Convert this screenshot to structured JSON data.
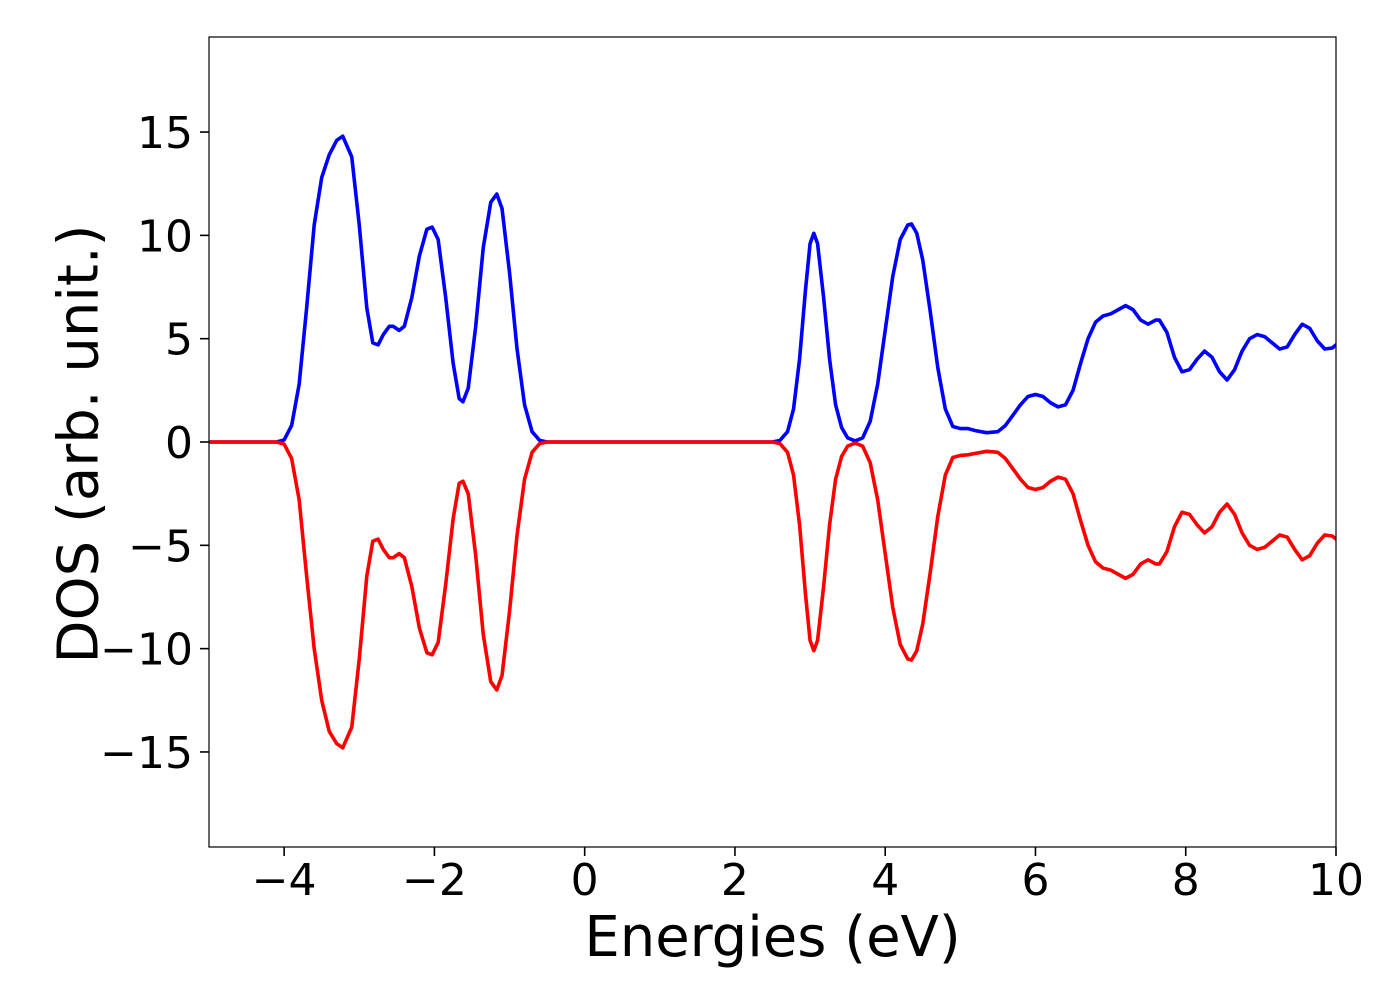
{
  "chart_data": {
    "type": "line",
    "title": "",
    "xlabel": "Energies (eV)",
    "ylabel": "DOS (arb. unit.)",
    "xlim": [
      -5,
      10
    ],
    "ylim": [
      -19.6,
      19.6
    ],
    "x_ticks": [
      -4,
      -2,
      0,
      2,
      4,
      6,
      8,
      10
    ],
    "x_tick_labels": [
      "−4",
      "−2",
      "0",
      "2",
      "4",
      "6",
      "8",
      "10"
    ],
    "y_ticks": [
      -15,
      -10,
      -5,
      0,
      5,
      10,
      15
    ],
    "y_tick_labels": [
      "−15",
      "−10",
      "−5",
      "0",
      "5",
      "10",
      "15"
    ],
    "grid": false,
    "legend": "none",
    "series": [
      {
        "color": "#0000ff",
        "points": [
          [
            -5.0,
            0.0
          ],
          [
            -4.1,
            0.0
          ],
          [
            -4.0,
            0.1
          ],
          [
            -3.9,
            0.8
          ],
          [
            -3.8,
            2.8
          ],
          [
            -3.7,
            6.5
          ],
          [
            -3.6,
            10.5
          ],
          [
            -3.5,
            12.8
          ],
          [
            -3.4,
            13.9
          ],
          [
            -3.3,
            14.6
          ],
          [
            -3.22,
            14.8
          ],
          [
            -3.1,
            13.8
          ],
          [
            -3.0,
            10.5
          ],
          [
            -2.9,
            6.5
          ],
          [
            -2.82,
            4.8
          ],
          [
            -2.75,
            4.7
          ],
          [
            -2.68,
            5.2
          ],
          [
            -2.6,
            5.6
          ],
          [
            -2.55,
            5.6
          ],
          [
            -2.47,
            5.4
          ],
          [
            -2.4,
            5.6
          ],
          [
            -2.3,
            7.0
          ],
          [
            -2.2,
            9.0
          ],
          [
            -2.1,
            10.3
          ],
          [
            -2.03,
            10.4
          ],
          [
            -1.95,
            9.8
          ],
          [
            -1.85,
            7.0
          ],
          [
            -1.75,
            3.8
          ],
          [
            -1.67,
            2.1
          ],
          [
            -1.62,
            1.95
          ],
          [
            -1.55,
            2.6
          ],
          [
            -1.45,
            5.6
          ],
          [
            -1.35,
            9.4
          ],
          [
            -1.25,
            11.6
          ],
          [
            -1.17,
            12.0
          ],
          [
            -1.1,
            11.3
          ],
          [
            -1.0,
            8.2
          ],
          [
            -0.9,
            4.5
          ],
          [
            -0.8,
            1.8
          ],
          [
            -0.7,
            0.5
          ],
          [
            -0.6,
            0.08
          ],
          [
            -0.5,
            0.0
          ],
          [
            2.5,
            0.0
          ],
          [
            2.6,
            0.08
          ],
          [
            2.7,
            0.5
          ],
          [
            2.78,
            1.6
          ],
          [
            2.86,
            4.0
          ],
          [
            2.94,
            7.4
          ],
          [
            3.0,
            9.6
          ],
          [
            3.05,
            10.1
          ],
          [
            3.1,
            9.6
          ],
          [
            3.18,
            7.0
          ],
          [
            3.26,
            4.0
          ],
          [
            3.34,
            1.8
          ],
          [
            3.42,
            0.7
          ],
          [
            3.5,
            0.2
          ],
          [
            3.6,
            0.05
          ],
          [
            3.7,
            0.2
          ],
          [
            3.8,
            1.0
          ],
          [
            3.9,
            2.8
          ],
          [
            4.0,
            5.4
          ],
          [
            4.1,
            8.0
          ],
          [
            4.2,
            9.8
          ],
          [
            4.3,
            10.5
          ],
          [
            4.35,
            10.55
          ],
          [
            4.42,
            10.1
          ],
          [
            4.5,
            8.8
          ],
          [
            4.6,
            6.3
          ],
          [
            4.7,
            3.6
          ],
          [
            4.8,
            1.6
          ],
          [
            4.9,
            0.75
          ],
          [
            5.0,
            0.65
          ],
          [
            5.1,
            0.65
          ],
          [
            5.2,
            0.55
          ],
          [
            5.35,
            0.45
          ],
          [
            5.5,
            0.5
          ],
          [
            5.6,
            0.8
          ],
          [
            5.7,
            1.3
          ],
          [
            5.8,
            1.8
          ],
          [
            5.9,
            2.2
          ],
          [
            6.0,
            2.3
          ],
          [
            6.1,
            2.2
          ],
          [
            6.2,
            1.9
          ],
          [
            6.3,
            1.7
          ],
          [
            6.4,
            1.8
          ],
          [
            6.5,
            2.5
          ],
          [
            6.6,
            3.8
          ],
          [
            6.7,
            5.0
          ],
          [
            6.8,
            5.8
          ],
          [
            6.9,
            6.1
          ],
          [
            7.0,
            6.2
          ],
          [
            7.1,
            6.4
          ],
          [
            7.2,
            6.6
          ],
          [
            7.3,
            6.4
          ],
          [
            7.4,
            5.9
          ],
          [
            7.5,
            5.7
          ],
          [
            7.6,
            5.9
          ],
          [
            7.65,
            5.9
          ],
          [
            7.75,
            5.3
          ],
          [
            7.85,
            4.1
          ],
          [
            7.95,
            3.4
          ],
          [
            8.05,
            3.5
          ],
          [
            8.15,
            4.0
          ],
          [
            8.25,
            4.4
          ],
          [
            8.35,
            4.1
          ],
          [
            8.45,
            3.4
          ],
          [
            8.55,
            3.0
          ],
          [
            8.65,
            3.5
          ],
          [
            8.75,
            4.4
          ],
          [
            8.85,
            5.0
          ],
          [
            8.95,
            5.2
          ],
          [
            9.05,
            5.1
          ],
          [
            9.15,
            4.8
          ],
          [
            9.25,
            4.5
          ],
          [
            9.35,
            4.6
          ],
          [
            9.45,
            5.2
          ],
          [
            9.55,
            5.7
          ],
          [
            9.65,
            5.5
          ],
          [
            9.75,
            4.9
          ],
          [
            9.85,
            4.5
          ],
          [
            9.95,
            4.55
          ],
          [
            10.0,
            4.7
          ]
        ]
      },
      {
        "color": "#ff0000",
        "points": [
          [
            -5.0,
            0.0
          ],
          [
            -4.1,
            0.0
          ],
          [
            -4.0,
            -0.1
          ],
          [
            -3.9,
            -0.8
          ],
          [
            -3.8,
            -2.8
          ],
          [
            -3.7,
            -6.5
          ],
          [
            -3.6,
            -10.0
          ],
          [
            -3.5,
            -12.5
          ],
          [
            -3.4,
            -14.0
          ],
          [
            -3.3,
            -14.6
          ],
          [
            -3.22,
            -14.8
          ],
          [
            -3.1,
            -13.8
          ],
          [
            -3.0,
            -10.5
          ],
          [
            -2.9,
            -6.5
          ],
          [
            -2.82,
            -4.8
          ],
          [
            -2.75,
            -4.7
          ],
          [
            -2.68,
            -5.2
          ],
          [
            -2.6,
            -5.6
          ],
          [
            -2.55,
            -5.6
          ],
          [
            -2.47,
            -5.4
          ],
          [
            -2.4,
            -5.6
          ],
          [
            -2.3,
            -7.0
          ],
          [
            -2.2,
            -9.0
          ],
          [
            -2.1,
            -10.2
          ],
          [
            -2.03,
            -10.3
          ],
          [
            -1.95,
            -9.7
          ],
          [
            -1.85,
            -6.9
          ],
          [
            -1.75,
            -3.7
          ],
          [
            -1.67,
            -2.0
          ],
          [
            -1.62,
            -1.9
          ],
          [
            -1.55,
            -2.5
          ],
          [
            -1.45,
            -5.5
          ],
          [
            -1.35,
            -9.3
          ],
          [
            -1.25,
            -11.6
          ],
          [
            -1.17,
            -12.0
          ],
          [
            -1.1,
            -11.3
          ],
          [
            -1.0,
            -8.2
          ],
          [
            -0.9,
            -4.5
          ],
          [
            -0.8,
            -1.8
          ],
          [
            -0.7,
            -0.5
          ],
          [
            -0.6,
            -0.08
          ],
          [
            -0.5,
            0.0
          ],
          [
            2.5,
            0.0
          ],
          [
            2.6,
            -0.08
          ],
          [
            2.7,
            -0.5
          ],
          [
            2.78,
            -1.6
          ],
          [
            2.86,
            -4.0
          ],
          [
            2.94,
            -7.4
          ],
          [
            3.0,
            -9.6
          ],
          [
            3.05,
            -10.1
          ],
          [
            3.1,
            -9.6
          ],
          [
            3.18,
            -7.0
          ],
          [
            3.26,
            -4.0
          ],
          [
            3.34,
            -1.8
          ],
          [
            3.42,
            -0.7
          ],
          [
            3.5,
            -0.2
          ],
          [
            3.6,
            -0.05
          ],
          [
            3.7,
            -0.2
          ],
          [
            3.8,
            -1.0
          ],
          [
            3.9,
            -2.8
          ],
          [
            4.0,
            -5.4
          ],
          [
            4.1,
            -8.0
          ],
          [
            4.2,
            -9.8
          ],
          [
            4.3,
            -10.5
          ],
          [
            4.35,
            -10.55
          ],
          [
            4.42,
            -10.1
          ],
          [
            4.5,
            -8.8
          ],
          [
            4.6,
            -6.3
          ],
          [
            4.7,
            -3.6
          ],
          [
            4.8,
            -1.6
          ],
          [
            4.9,
            -0.75
          ],
          [
            5.0,
            -0.65
          ],
          [
            5.1,
            -0.62
          ],
          [
            5.2,
            -0.55
          ],
          [
            5.35,
            -0.45
          ],
          [
            5.5,
            -0.5
          ],
          [
            5.6,
            -0.8
          ],
          [
            5.7,
            -1.3
          ],
          [
            5.8,
            -1.8
          ],
          [
            5.9,
            -2.2
          ],
          [
            6.0,
            -2.3
          ],
          [
            6.1,
            -2.2
          ],
          [
            6.2,
            -1.9
          ],
          [
            6.3,
            -1.7
          ],
          [
            6.4,
            -1.8
          ],
          [
            6.5,
            -2.5
          ],
          [
            6.6,
            -3.8
          ],
          [
            6.7,
            -5.0
          ],
          [
            6.8,
            -5.8
          ],
          [
            6.9,
            -6.1
          ],
          [
            7.0,
            -6.2
          ],
          [
            7.1,
            -6.4
          ],
          [
            7.2,
            -6.6
          ],
          [
            7.3,
            -6.4
          ],
          [
            7.4,
            -5.9
          ],
          [
            7.5,
            -5.7
          ],
          [
            7.6,
            -5.9
          ],
          [
            7.65,
            -5.9
          ],
          [
            7.75,
            -5.3
          ],
          [
            7.85,
            -4.1
          ],
          [
            7.95,
            -3.4
          ],
          [
            8.05,
            -3.5
          ],
          [
            8.15,
            -4.0
          ],
          [
            8.25,
            -4.4
          ],
          [
            8.35,
            -4.1
          ],
          [
            8.45,
            -3.4
          ],
          [
            8.55,
            -3.0
          ],
          [
            8.65,
            -3.5
          ],
          [
            8.75,
            -4.4
          ],
          [
            8.85,
            -5.0
          ],
          [
            8.95,
            -5.2
          ],
          [
            9.05,
            -5.1
          ],
          [
            9.15,
            -4.8
          ],
          [
            9.25,
            -4.5
          ],
          [
            9.35,
            -4.6
          ],
          [
            9.45,
            -5.2
          ],
          [
            9.55,
            -5.7
          ],
          [
            9.65,
            -5.5
          ],
          [
            9.75,
            -4.9
          ],
          [
            9.85,
            -4.5
          ],
          [
            9.95,
            -4.55
          ],
          [
            10.0,
            -4.7
          ]
        ]
      }
    ]
  }
}
